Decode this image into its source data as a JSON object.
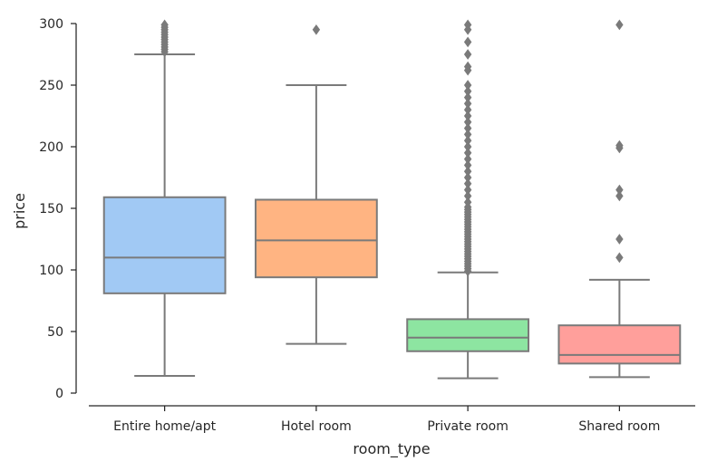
{
  "chart_data": {
    "type": "box",
    "xlabel": "room_type",
    "ylabel": "price",
    "ylim": [
      0,
      300
    ],
    "yticks": [
      0,
      50,
      100,
      150,
      200,
      250,
      300
    ],
    "grid": false,
    "categories": [
      "Entire home/apt",
      "Hotel room",
      "Private room",
      "Shared room"
    ],
    "colors": [
      "#a1c9f4",
      "#ffb482",
      "#8de5a1",
      "#ff9f9b"
    ],
    "boxes": [
      {
        "whisker_low": 14,
        "q1": 81,
        "median": 110,
        "q3": 159,
        "whisker_high": 275,
        "outliers": [
          277,
          279,
          281,
          283,
          285,
          287,
          289,
          291,
          293,
          295,
          297,
          299
        ]
      },
      {
        "whisker_low": 40,
        "q1": 94,
        "median": 124,
        "q3": 157,
        "whisker_high": 250,
        "outliers": [
          295
        ]
      },
      {
        "whisker_low": 12,
        "q1": 34,
        "median": 45,
        "q3": 60,
        "whisker_high": 98,
        "outliers": [
          99,
          101,
          103,
          105,
          107,
          109,
          111,
          113,
          115,
          117,
          119,
          121,
          123,
          125,
          127,
          129,
          131,
          133,
          135,
          137,
          139,
          141,
          143,
          145,
          147,
          149,
          151,
          155,
          160,
          165,
          170,
          175,
          180,
          185,
          190,
          195,
          200,
          205,
          210,
          215,
          220,
          225,
          230,
          235,
          240,
          245,
          250,
          262,
          265,
          275,
          285,
          295,
          299
        ]
      },
      {
        "whisker_low": 13,
        "q1": 24,
        "median": 31,
        "q3": 55,
        "whisker_high": 92,
        "outliers": [
          110,
          125,
          160,
          165,
          199,
          201,
          299
        ]
      }
    ]
  }
}
